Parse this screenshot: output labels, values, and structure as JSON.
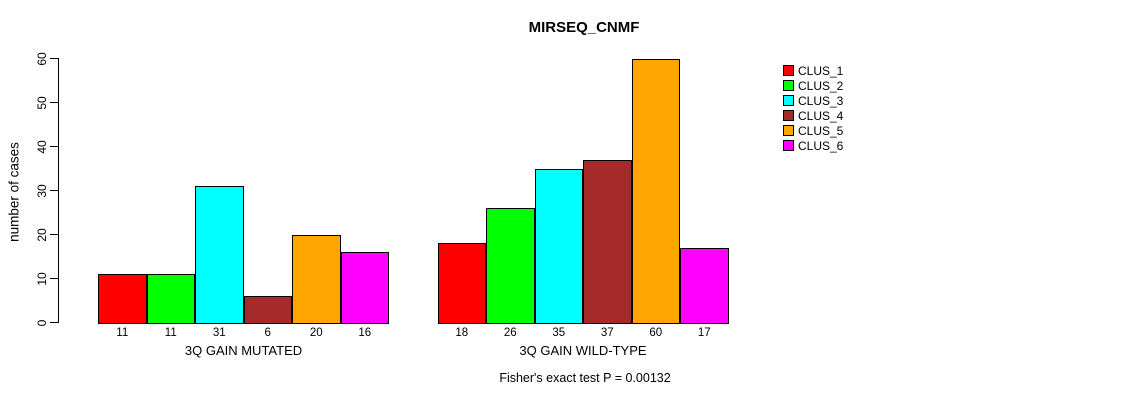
{
  "chart_data": {
    "type": "bar",
    "title": "MIRSEQ_CNMF",
    "ylabel": "number of cases",
    "note": "Fisher's exact test P = 0.00132",
    "ylim": [
      0,
      60
    ],
    "yticks": [
      0,
      10,
      20,
      30,
      40,
      50,
      60
    ],
    "grid": false,
    "legend_position": "right",
    "categories": [
      "3Q GAIN MUTATED",
      "3Q GAIN WILD-TYPE"
    ],
    "series": [
      {
        "name": "CLUS_1",
        "color": "#FF0000",
        "values": [
          11,
          18
        ]
      },
      {
        "name": "CLUS_2",
        "color": "#00FF00",
        "values": [
          11,
          26
        ]
      },
      {
        "name": "CLUS_3",
        "color": "#00FFFF",
        "values": [
          31,
          35
        ]
      },
      {
        "name": "CLUS_4",
        "color": "#A52A2A",
        "values": [
          6,
          37
        ]
      },
      {
        "name": "CLUS_5",
        "color": "#FFA500",
        "values": [
          20,
          60
        ]
      },
      {
        "name": "CLUS_6",
        "color": "#FF00FF",
        "values": [
          16,
          17
        ]
      }
    ]
  }
}
